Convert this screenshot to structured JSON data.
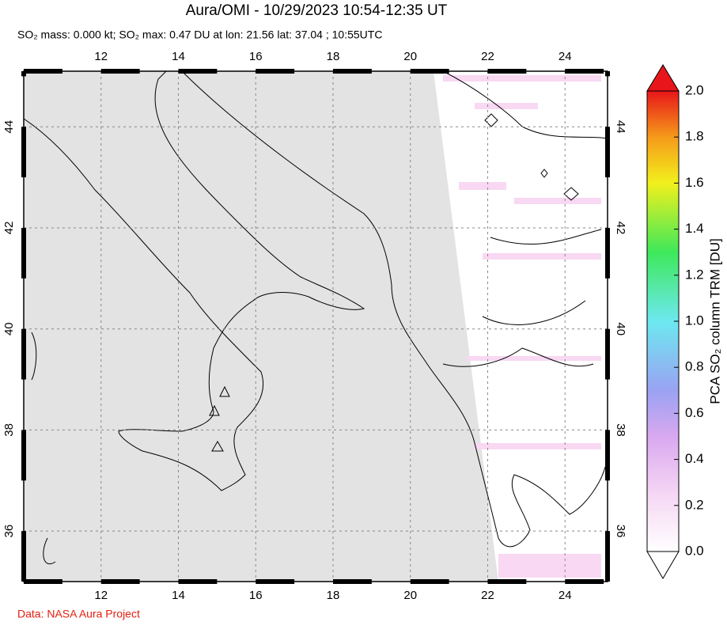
{
  "title": "Aura/OMI - 10/29/2023 10:54-12:35 UT",
  "subtitle": "SO₂ mass: 0.000 kt; SO₂ max: 0.47 DU at lon: 21.56 lat: 37.04 ; 10:55UTC",
  "map": {
    "lon_range": [
      10,
      25.1
    ],
    "lat_range": [
      35,
      45.1
    ],
    "lon_ticks": [
      12,
      14,
      16,
      18,
      20,
      22,
      24
    ],
    "lat_ticks": [
      36,
      38,
      40,
      42,
      44
    ]
  },
  "colorbar": {
    "label": "PCA SO₂ column TRM [DU]",
    "range": [
      0,
      2
    ],
    "ticks": [
      {
        "value": 0,
        "label": "0.0"
      },
      {
        "value": 0.2,
        "label": "0.2"
      },
      {
        "value": 0.4,
        "label": "0.4"
      },
      {
        "value": 0.6,
        "label": "0.6"
      },
      {
        "value": 0.8,
        "label": "0.8"
      },
      {
        "value": 1.0,
        "label": "1.0"
      },
      {
        "value": 1.2,
        "label": "1.2"
      },
      {
        "value": 1.4,
        "label": "1.4"
      },
      {
        "value": 1.6,
        "label": "1.6"
      },
      {
        "value": 1.8,
        "label": "1.8"
      },
      {
        "value": 2.0,
        "label": "2.0"
      }
    ]
  },
  "credit": "Data: NASA Aura Project"
}
